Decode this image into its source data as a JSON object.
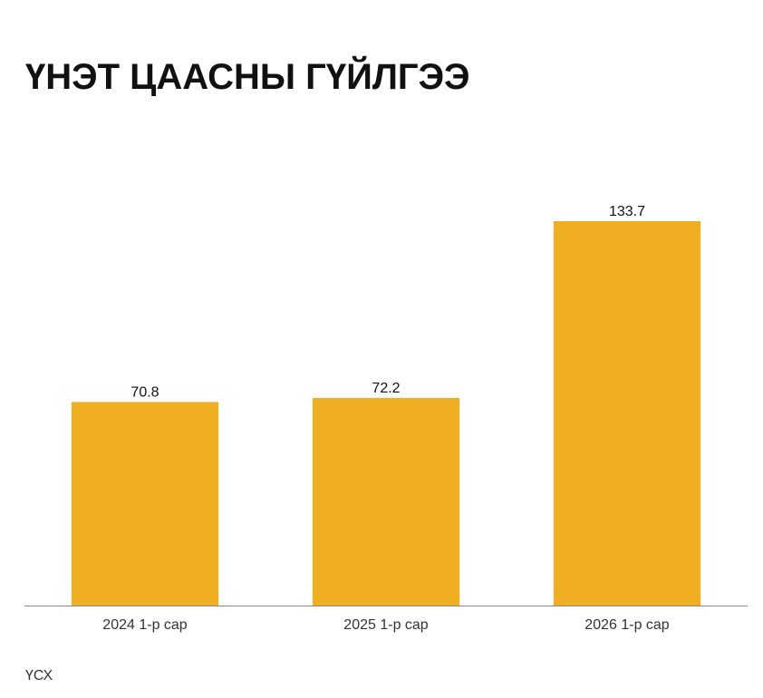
{
  "chart_data": {
    "type": "bar",
    "title": "ҮНЭТ ЦААСНЫ ГҮЙЛГЭЭ",
    "categories": [
      "2024 1-р сар",
      "2025 1-р сар",
      "2026 1-р сар"
    ],
    "values": [
      70.8,
      72.2,
      133.7
    ],
    "color": "#f0ae22",
    "source": "ҮСХ"
  }
}
